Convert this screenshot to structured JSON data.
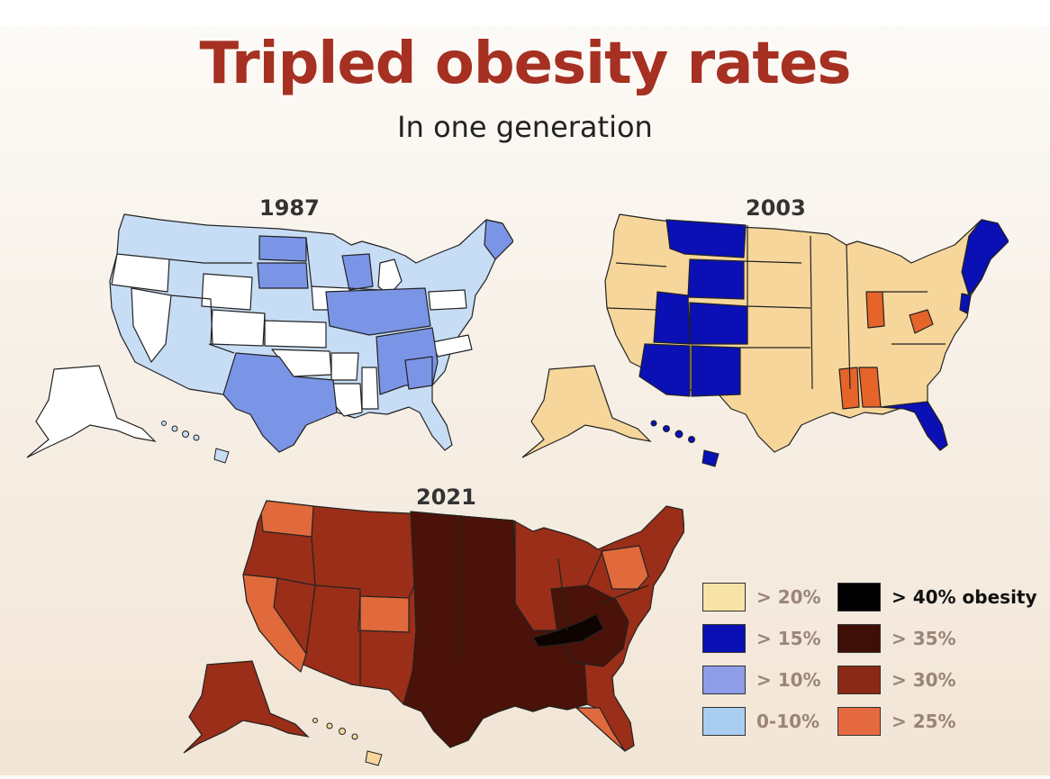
{
  "header": {
    "title": "Tripled obesity rates",
    "subtitle": "In one generation"
  },
  "maps": [
    {
      "year": "1987"
    },
    {
      "year": "2003"
    },
    {
      "year": "2021"
    }
  ],
  "colors": {
    "c1987_white": "#ffffff",
    "c1987_light": "#c7ddf5",
    "c1987_mid": "#7b95e6",
    "c2003_beige": "#f6d69a",
    "c2003_blue": "#0b10b4",
    "c2003_orange": "#e6642a",
    "c2021_r25": "#e06a3c",
    "c2021_r30": "#9a2e18",
    "c2021_r35": "#4a1208",
    "c2021_r40": "#0d0402",
    "border": "#222222"
  },
  "legend": {
    "items": [
      {
        "label": "> 20%",
        "color": "#f6e3a5",
        "style": "light"
      },
      {
        "label": "> 15%",
        "color": "#0b10b4",
        "style": "light"
      },
      {
        "label": "> 10%",
        "color": "#8f9ce8",
        "style": "light"
      },
      {
        "label": "0-10%",
        "color": "#a9cef0",
        "style": "light"
      },
      {
        "label": "> 40% obesity",
        "color": "#000000",
        "style": "dark"
      },
      {
        "label": "> 35%",
        "color": "#3e0f06",
        "style": "light"
      },
      {
        "label": "> 30%",
        "color": "#8a2a16",
        "style": "light"
      },
      {
        "label": "> 25%",
        "color": "#e56a40",
        "style": "light"
      }
    ]
  }
}
